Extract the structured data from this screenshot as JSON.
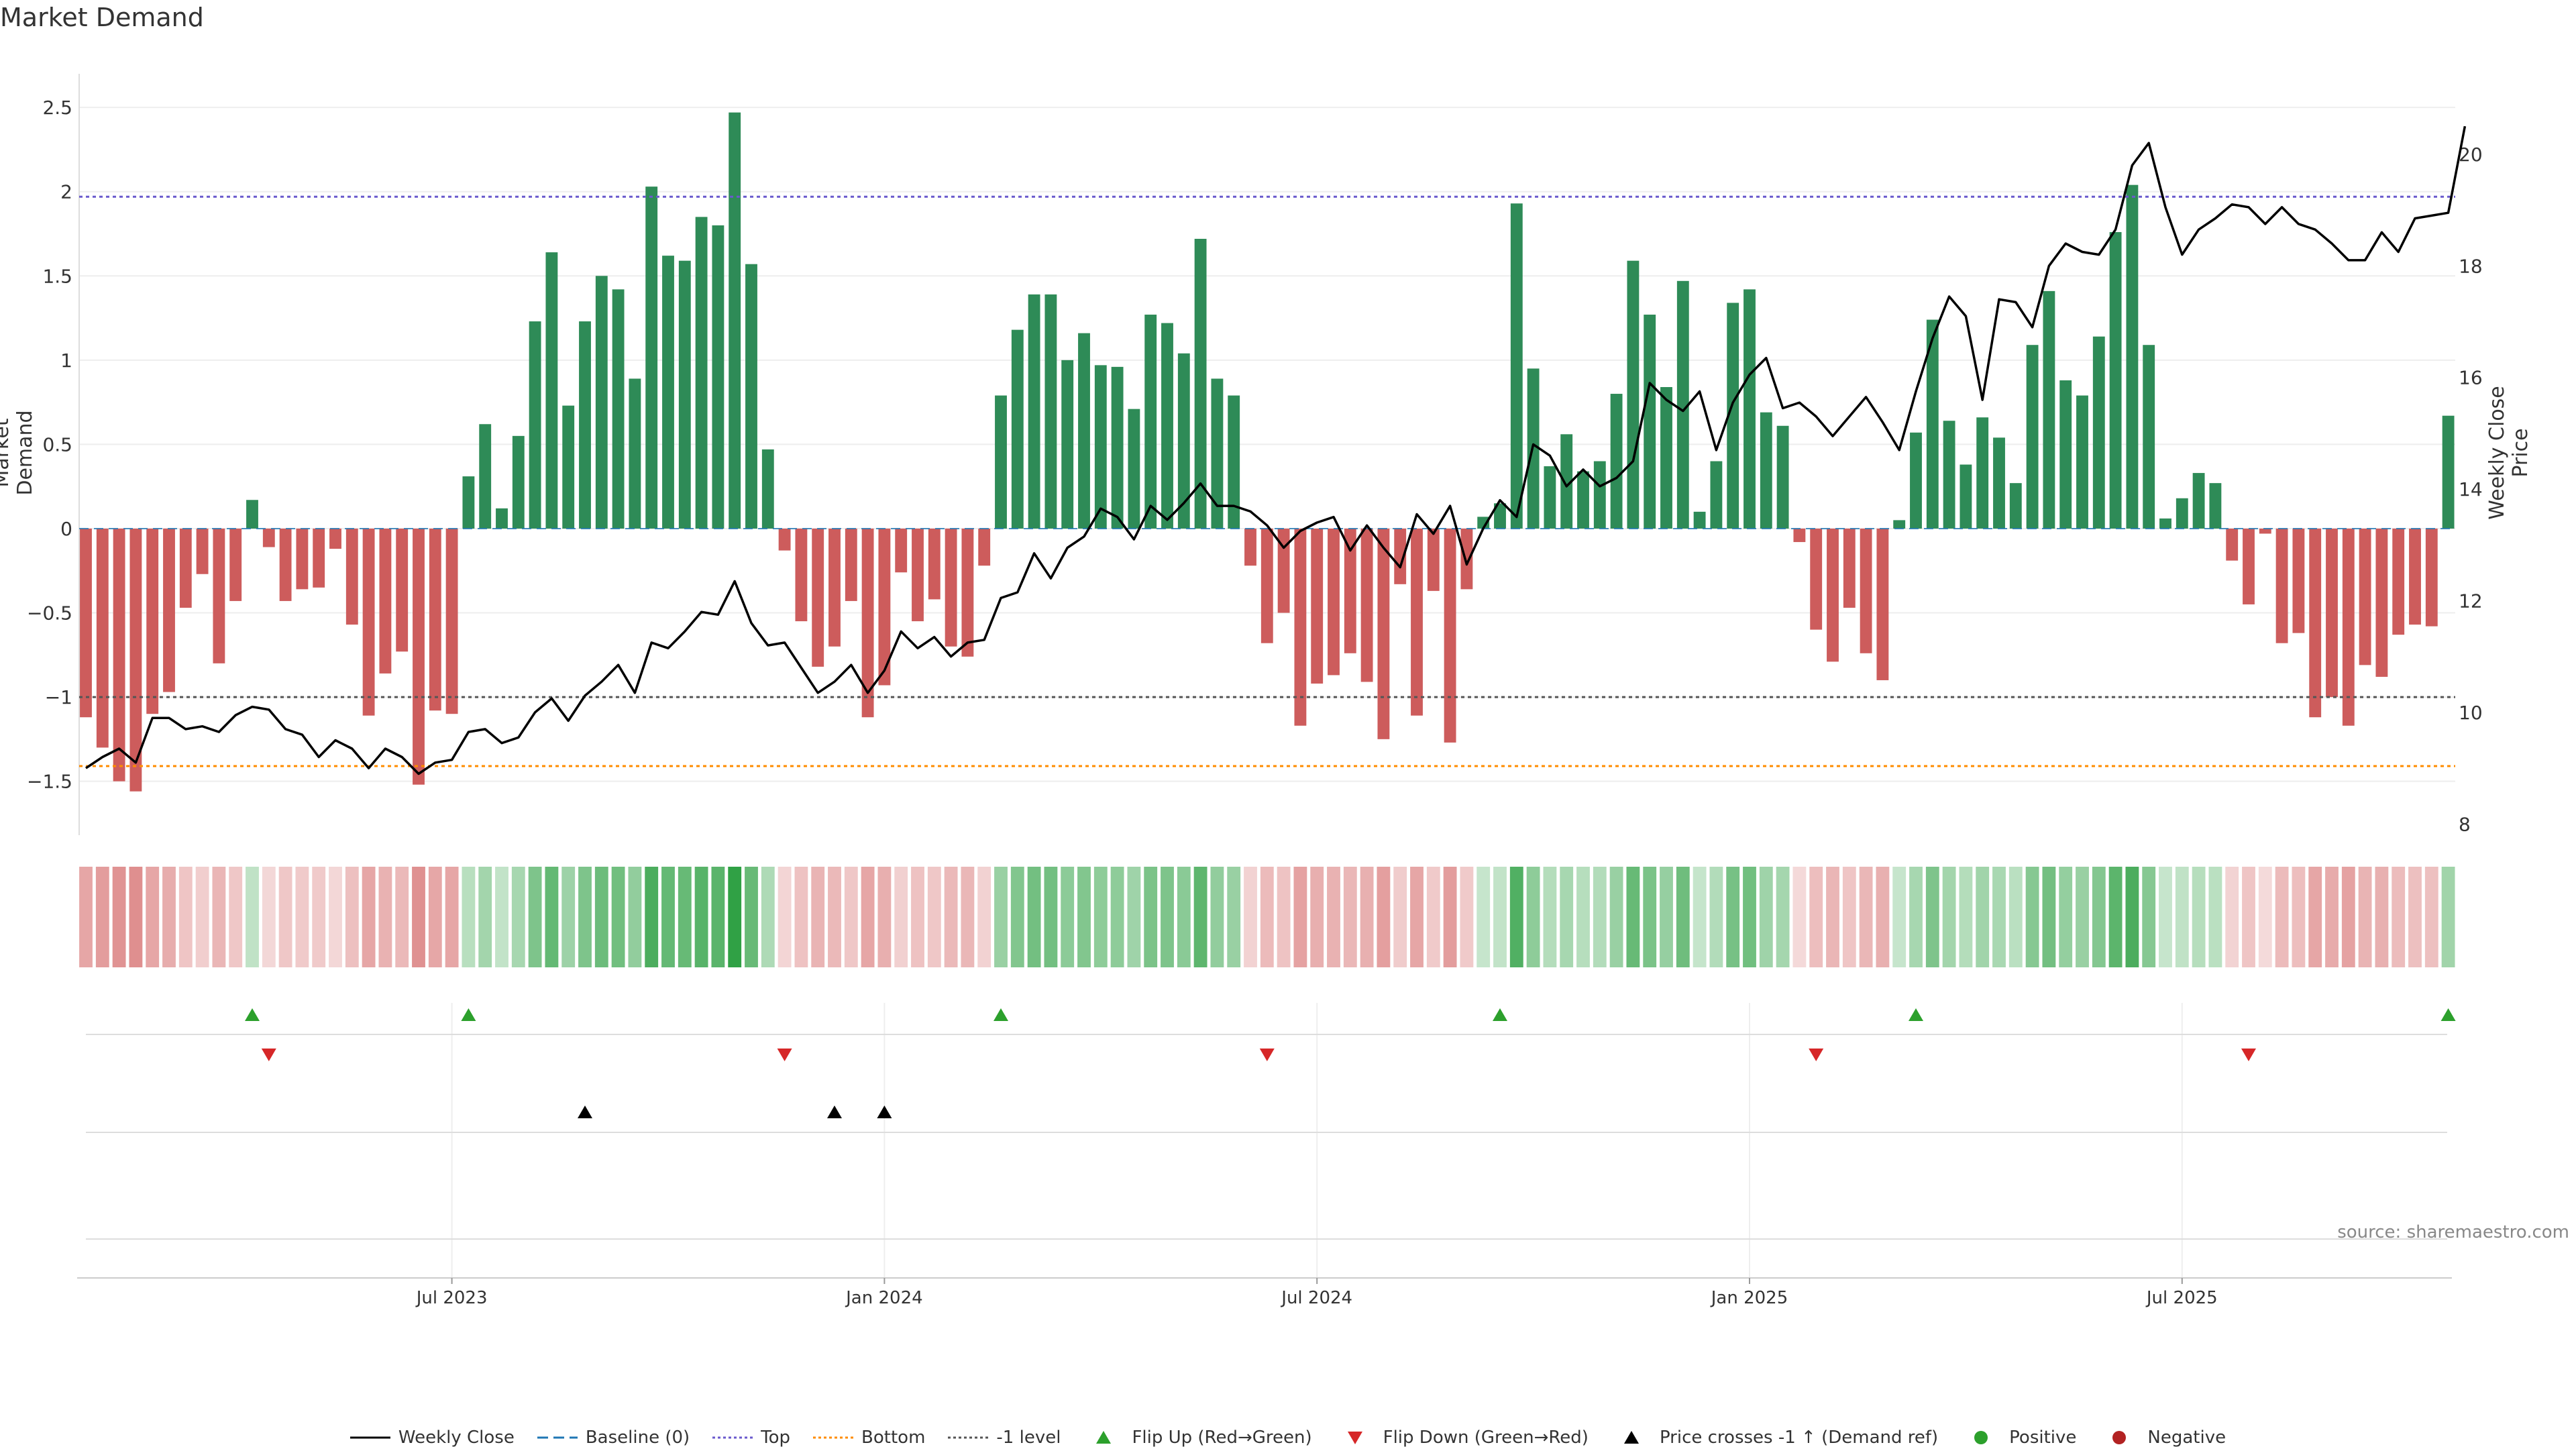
{
  "colors": {
    "green": "#2e8b57",
    "red": "#cd5c5c",
    "price": "#000000",
    "top": "#6a5acd",
    "bottom": "#ff8c00",
    "minus1": "#555555",
    "flip_up": "#2ca02c",
    "flip_down": "#d62728",
    "baseline": "#1f77b4"
  },
  "chart_data": {
    "type": "bar",
    "title": "Market Demand",
    "ylabel_left": "Market Demand",
    "ylabel_right": "Weekly Close Price",
    "source": "source: sharemaestro.com",
    "left_ticks": [
      "2.5",
      "2",
      "1.5",
      "1",
      "0.5",
      "0",
      "−0.5",
      "−1",
      "−1.5"
    ],
    "left_tick_values": [
      2.5,
      2,
      1.5,
      1,
      0.5,
      0,
      -0.5,
      -1,
      -1.5
    ],
    "left_ylim": [
      -1.82,
      2.62
    ],
    "right_ticks": [
      "20",
      "18",
      "16",
      "14",
      "12",
      "10",
      "8"
    ],
    "right_tick_values": [
      20,
      18,
      16,
      14,
      12,
      10,
      8
    ],
    "right_ylim": [
      7.8,
      21.2
    ],
    "x_ticks": [
      "Jul 2023",
      "Jan 2024",
      "Jul 2024",
      "Jan 2025",
      "Jul 2025"
    ],
    "x_tick_weeks": [
      22,
      48,
      74,
      100,
      126
    ],
    "levels": {
      "top": 1.97,
      "bottom": -1.41,
      "minus1": -1.0
    },
    "demand": [
      -1.12,
      -1.3,
      -1.5,
      -1.56,
      -1.1,
      -0.97,
      -0.47,
      -0.27,
      -0.8,
      -0.43,
      0.17,
      -0.11,
      -0.43,
      -0.36,
      -0.35,
      -0.12,
      -0.57,
      -1.11,
      -0.86,
      -0.73,
      -1.52,
      -1.08,
      -1.1,
      0.31,
      0.62,
      0.12,
      0.55,
      1.23,
      1.64,
      0.73,
      1.23,
      1.5,
      1.42,
      0.89,
      2.03,
      1.62,
      1.59,
      1.85,
      1.8,
      2.47,
      1.57,
      0.47,
      -0.13,
      -0.55,
      -0.82,
      -0.7,
      -0.43,
      -1.12,
      -0.93,
      -0.26,
      -0.55,
      -0.42,
      -0.7,
      -0.76,
      -0.22,
      0.79,
      1.18,
      1.39,
      1.39,
      1.0,
      1.16,
      0.97,
      0.96,
      0.71,
      1.27,
      1.22,
      1.04,
      1.72,
      0.89,
      0.79,
      -0.22,
      -0.68,
      -0.5,
      -1.17,
      -0.92,
      -0.87,
      -0.74,
      -0.91,
      -1.25,
      -0.33,
      -1.11,
      -0.37,
      -1.27,
      -0.36,
      0.07,
      0.15,
      1.93,
      0.95,
      0.37,
      0.56,
      0.34,
      0.4,
      0.8,
      1.59,
      1.27,
      0.84,
      1.47,
      0.1,
      0.4,
      1.34,
      1.42,
      0.69,
      0.61,
      -0.08,
      -0.6,
      -0.79,
      -0.47,
      -0.74,
      -0.9,
      0.05,
      0.57,
      1.24,
      0.64,
      0.38,
      0.66,
      0.54,
      0.27,
      1.09,
      1.41,
      0.88,
      0.79,
      1.14,
      1.76,
      2.04,
      1.09,
      0.06,
      0.18,
      0.33,
      0.27,
      -0.19,
      -0.45,
      -0.03,
      -0.68,
      -0.62,
      -1.12,
      -1.0,
      -1.17,
      -0.81,
      -0.88,
      -0.63,
      -0.57,
      -0.58,
      0.67
    ],
    "price": [
      9.0,
      9.2,
      9.35,
      9.1,
      9.9,
      9.9,
      9.7,
      9.75,
      9.65,
      9.95,
      10.1,
      10.05,
      9.7,
      9.6,
      9.2,
      9.5,
      9.35,
      9.0,
      9.35,
      9.2,
      8.9,
      9.1,
      9.15,
      9.65,
      9.7,
      9.45,
      9.55,
      10.0,
      10.25,
      9.85,
      10.3,
      10.55,
      10.85,
      10.35,
      11.25,
      11.15,
      11.45,
      11.8,
      11.75,
      12.35,
      11.6,
      11.2,
      11.25,
      10.8,
      10.35,
      10.55,
      10.85,
      10.35,
      10.75,
      11.45,
      11.15,
      11.35,
      11.0,
      11.25,
      11.3,
      12.05,
      12.15,
      12.85,
      12.4,
      12.95,
      13.15,
      13.65,
      13.5,
      13.1,
      13.7,
      13.45,
      13.75,
      14.1,
      13.7,
      13.7,
      13.6,
      13.35,
      12.95,
      13.25,
      13.4,
      13.5,
      12.9,
      13.35,
      12.95,
      12.6,
      13.55,
      13.2,
      13.7,
      12.65,
      13.3,
      13.8,
      13.5,
      14.8,
      14.6,
      14.05,
      14.35,
      14.05,
      14.2,
      14.5,
      15.9,
      15.6,
      15.4,
      15.75,
      14.7,
      15.55,
      16.05,
      16.35,
      15.45,
      15.55,
      15.3,
      14.95,
      15.3,
      15.65,
      15.2,
      14.7,
      15.75,
      16.7,
      17.45,
      17.1,
      15.6,
      17.4,
      17.35,
      16.9,
      18.0,
      18.4,
      18.25,
      18.2,
      18.65,
      19.8,
      20.2,
      19.05,
      18.2,
      18.65,
      18.85,
      19.1,
      19.05,
      18.75,
      19.05,
      18.75,
      18.65,
      18.4,
      18.1,
      18.1,
      18.6,
      18.25,
      18.85,
      18.9,
      18.95,
      20.5
    ],
    "flip_up_weeks": [
      10,
      23,
      55,
      85,
      110,
      142
    ],
    "flip_down_weeks": [
      11,
      42,
      71,
      104,
      130
    ],
    "price_cross_weeks": [
      30,
      45,
      48
    ],
    "legend": [
      "Weekly Close",
      "Baseline (0)",
      "Top",
      "Bottom",
      "-1 level",
      "Flip Up (Red→Green)",
      "Flip Down (Green→Red)",
      "Price crosses -1 ↑ (Demand ref)",
      "Positive",
      "Negative"
    ]
  }
}
